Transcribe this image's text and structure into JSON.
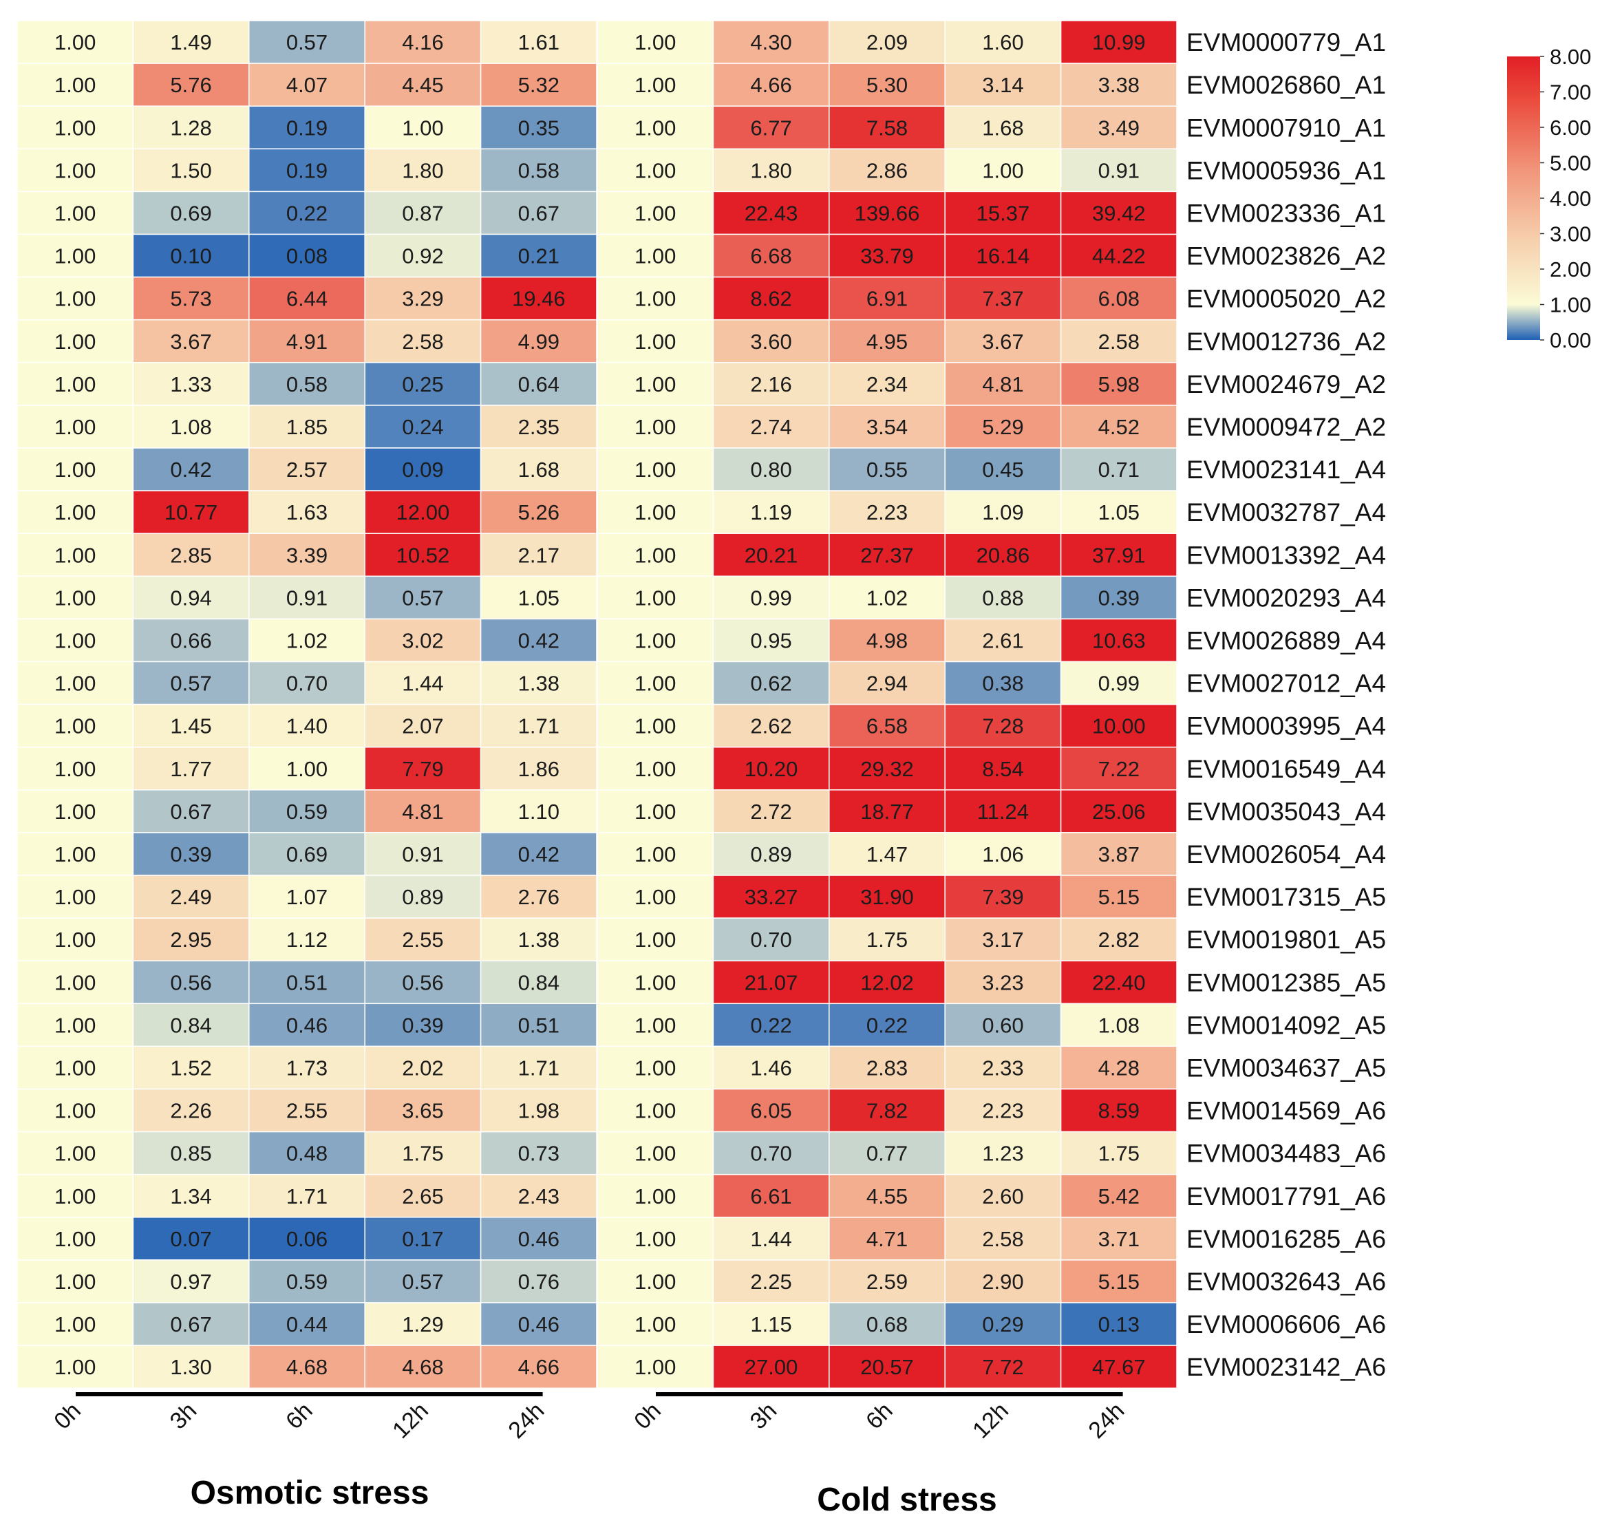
{
  "chart_data": {
    "type": "heatmap",
    "title": "",
    "panels": [
      {
        "name": "Osmotic stress",
        "columns": [
          "0h",
          "3h",
          "6h",
          "12h",
          "24h"
        ]
      },
      {
        "name": "Cold stress",
        "columns": [
          "0h",
          "3h",
          "6h",
          "12h",
          "24h"
        ]
      }
    ],
    "genes": [
      "EVM0000779_A1",
      "EVM0026860_A1",
      "EVM0007910_A1",
      "EVM0005936_A1",
      "EVM0023336_A1",
      "EVM0023826_A2",
      "EVM0005020_A2",
      "EVM0012736_A2",
      "EVM0024679_A2",
      "EVM0009472_A2",
      "EVM0023141_A4",
      "EVM0032787_A4",
      "EVM0013392_A4",
      "EVM0020293_A4",
      "EVM0026889_A4",
      "EVM0027012_A4",
      "EVM0003995_A4",
      "EVM0016549_A4",
      "EVM0035043_A4",
      "EVM0026054_A4",
      "EVM0017315_A5",
      "EVM0019801_A5",
      "EVM0012385_A5",
      "EVM0014092_A5",
      "EVM0034637_A5",
      "EVM0014569_A6",
      "EVM0034483_A6",
      "EVM0017791_A6",
      "EVM0016285_A6",
      "EVM0032643_A6",
      "EVM0006606_A6",
      "EVM0023142_A6"
    ],
    "osmotic": [
      [
        "1.00",
        "1.49",
        "0.57",
        "4.16",
        "1.61"
      ],
      [
        "1.00",
        "5.76",
        "4.07",
        "4.45",
        "5.32"
      ],
      [
        "1.00",
        "1.28",
        "0.19",
        "1.00",
        "0.35"
      ],
      [
        "1.00",
        "1.50",
        "0.19",
        "1.80",
        "0.58"
      ],
      [
        "1.00",
        "0.69",
        "0.22",
        "0.87",
        "0.67"
      ],
      [
        "1.00",
        "0.10",
        "0.08",
        "0.92",
        "0.21"
      ],
      [
        "1.00",
        "5.73",
        "6.44",
        "3.29",
        "19.46"
      ],
      [
        "1.00",
        "3.67",
        "4.91",
        "2.58",
        "4.99"
      ],
      [
        "1.00",
        "1.33",
        "0.58",
        "0.25",
        "0.64"
      ],
      [
        "1.00",
        "1.08",
        "1.85",
        "0.24",
        "2.35"
      ],
      [
        "1.00",
        "0.42",
        "2.57",
        "0.09",
        "1.68"
      ],
      [
        "1.00",
        "10.77",
        "1.63",
        "12.00",
        "5.26"
      ],
      [
        "1.00",
        "2.85",
        "3.39",
        "10.52",
        "2.17"
      ],
      [
        "1.00",
        "0.94",
        "0.91",
        "0.57",
        "1.05"
      ],
      [
        "1.00",
        "0.66",
        "1.02",
        "3.02",
        "0.42"
      ],
      [
        "1.00",
        "0.57",
        "0.70",
        "1.44",
        "1.38"
      ],
      [
        "1.00",
        "1.45",
        "1.40",
        "2.07",
        "1.71"
      ],
      [
        "1.00",
        "1.77",
        "1.00",
        "7.79",
        "1.86"
      ],
      [
        "1.00",
        "0.67",
        "0.59",
        "4.81",
        "1.10"
      ],
      [
        "1.00",
        "0.39",
        "0.69",
        "0.91",
        "0.42"
      ],
      [
        "1.00",
        "2.49",
        "1.07",
        "0.89",
        "2.76"
      ],
      [
        "1.00",
        "2.95",
        "1.12",
        "2.55",
        "1.38"
      ],
      [
        "1.00",
        "0.56",
        "0.51",
        "0.56",
        "0.84"
      ],
      [
        "1.00",
        "0.84",
        "0.46",
        "0.39",
        "0.51"
      ],
      [
        "1.00",
        "1.52",
        "1.73",
        "2.02",
        "1.71"
      ],
      [
        "1.00",
        "2.26",
        "2.55",
        "3.65",
        "1.98"
      ],
      [
        "1.00",
        "0.85",
        "0.48",
        "1.75",
        "0.73"
      ],
      [
        "1.00",
        "1.34",
        "1.71",
        "2.65",
        "2.43"
      ],
      [
        "1.00",
        "0.07",
        "0.06",
        "0.17",
        "0.46"
      ],
      [
        "1.00",
        "0.97",
        "0.59",
        "0.57",
        "0.76"
      ],
      [
        "1.00",
        "0.67",
        "0.44",
        "1.29",
        "0.46"
      ],
      [
        "1.00",
        "1.30",
        "4.68",
        "4.68",
        "4.66"
      ]
    ],
    "cold": [
      [
        "1.00",
        "4.30",
        "2.09",
        "1.60",
        "10.99"
      ],
      [
        "1.00",
        "4.66",
        "5.30",
        "3.14",
        "3.38"
      ],
      [
        "1.00",
        "6.77",
        "7.58",
        "1.68",
        "3.49"
      ],
      [
        "1.00",
        "1.80",
        "2.86",
        "1.00",
        "0.91"
      ],
      [
        "1.00",
        "22.43",
        "139.66",
        "15.37",
        "39.42"
      ],
      [
        "1.00",
        "6.68",
        "33.79",
        "16.14",
        "44.22"
      ],
      [
        "1.00",
        "8.62",
        "6.91",
        "7.37",
        "6.08"
      ],
      [
        "1.00",
        "3.60",
        "4.95",
        "3.67",
        "2.58"
      ],
      [
        "1.00",
        "2.16",
        "2.34",
        "4.81",
        "5.98"
      ],
      [
        "1.00",
        "2.74",
        "3.54",
        "5.29",
        "4.52"
      ],
      [
        "1.00",
        "0.80",
        "0.55",
        "0.45",
        "0.71"
      ],
      [
        "1.00",
        "1.19",
        "2.23",
        "1.09",
        "1.05"
      ],
      [
        "1.00",
        "20.21",
        "27.37",
        "20.86",
        "37.91"
      ],
      [
        "1.00",
        "0.99",
        "1.02",
        "0.88",
        "0.39"
      ],
      [
        "1.00",
        "0.95",
        "4.98",
        "2.61",
        "10.63"
      ],
      [
        "1.00",
        "0.62",
        "2.94",
        "0.38",
        "0.99"
      ],
      [
        "1.00",
        "2.62",
        "6.58",
        "7.28",
        "10.00"
      ],
      [
        "1.00",
        "10.20",
        "29.32",
        "8.54",
        "7.22"
      ],
      [
        "1.00",
        "2.72",
        "18.77",
        "11.24",
        "25.06"
      ],
      [
        "1.00",
        "0.89",
        "1.47",
        "1.06",
        "3.87"
      ],
      [
        "1.00",
        "33.27",
        "31.90",
        "7.39",
        "5.15"
      ],
      [
        "1.00",
        "0.70",
        "1.75",
        "3.17",
        "2.82"
      ],
      [
        "1.00",
        "21.07",
        "12.02",
        "3.23",
        "22.40"
      ],
      [
        "1.00",
        "0.22",
        "0.22",
        "0.60",
        "1.08"
      ],
      [
        "1.00",
        "1.46",
        "2.83",
        "2.33",
        "4.28"
      ],
      [
        "1.00",
        "6.05",
        "7.82",
        "2.23",
        "8.59"
      ],
      [
        "1.00",
        "0.70",
        "0.77",
        "1.23",
        "1.75"
      ],
      [
        "1.00",
        "6.61",
        "4.55",
        "2.60",
        "5.42"
      ],
      [
        "1.00",
        "1.44",
        "4.71",
        "2.58",
        "3.71"
      ],
      [
        "1.00",
        "2.25",
        "2.59",
        "2.90",
        "5.15"
      ],
      [
        "1.00",
        "1.15",
        "0.68",
        "0.29",
        "0.13"
      ],
      [
        "1.00",
        "27.00",
        "20.57",
        "7.72",
        "47.67"
      ]
    ],
    "color_scale": {
      "min": 0,
      "max": 8,
      "midpoint": 1,
      "low_color": "#1f5fb4",
      "mid_color": "#fbfbd6",
      "high_color": "#e21f26",
      "ticks": [
        "8.00",
        "7.00",
        "6.00",
        "5.00",
        "4.00",
        "3.00",
        "2.00",
        "1.00",
        "0.00"
      ]
    }
  }
}
